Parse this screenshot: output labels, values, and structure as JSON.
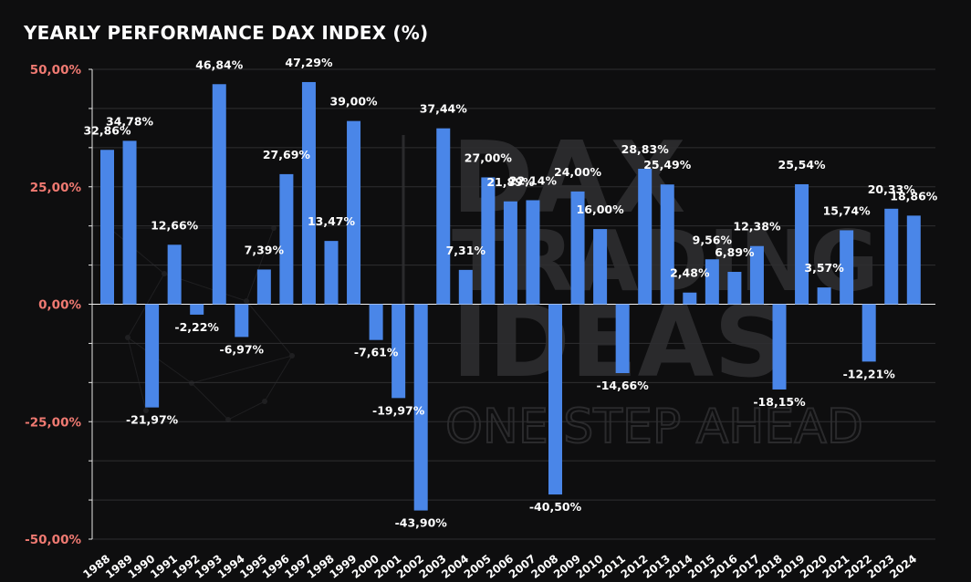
{
  "chart_data": {
    "type": "bar",
    "title": "YEARLY PERFORMANCE DAX INDEX (%)",
    "xlabel": "",
    "ylabel": "",
    "ylim": [
      -50,
      50
    ],
    "yticks": [
      50,
      25,
      0,
      -25,
      -50
    ],
    "ytick_labels": [
      "50,00%",
      "25,00%",
      "0,00%",
      "-25,00%",
      "-50,00%"
    ],
    "grid": true,
    "legend": "none",
    "categories": [
      "1988",
      "1989",
      "1990",
      "1991",
      "1992",
      "1993",
      "1994",
      "1995",
      "1996",
      "1997",
      "1998",
      "1999",
      "2000",
      "2001",
      "2002",
      "2003",
      "2004",
      "2005",
      "2006",
      "2007",
      "2008",
      "2009",
      "2010",
      "2011",
      "2012",
      "2013",
      "2014",
      "2015",
      "2016",
      "2017",
      "2018",
      "2019",
      "2020",
      "2021",
      "2022",
      "2023",
      "2024"
    ],
    "values": [
      32.86,
      34.78,
      -21.97,
      12.66,
      -2.22,
      46.84,
      -6.97,
      7.39,
      27.69,
      47.29,
      13.47,
      39.0,
      -7.61,
      -19.97,
      -43.9,
      37.44,
      7.31,
      27.0,
      21.89,
      22.14,
      -40.5,
      24.0,
      16.0,
      -14.66,
      28.83,
      25.49,
      2.48,
      9.56,
      6.89,
      12.38,
      -18.15,
      25.54,
      3.57,
      15.74,
      -12.21,
      20.33,
      18.86
    ],
    "data_labels": [
      "32,86%",
      "34,78%",
      "-21,97%",
      "12,66%",
      "-2,22%",
      "46,84%",
      "-6,97%",
      "7,39%",
      "27,69%",
      "47,29%",
      "13,47%",
      "39,00%",
      "-7,61%",
      "-19,97%",
      "-43,90%",
      "37,44%",
      "7,31%",
      "27,00%",
      "21,89%",
      "22,14%",
      "-40,50%",
      "24,00%",
      "16,00%",
      "-14,66%",
      "28,83%",
      "25,49%",
      "2,48%",
      "9,56%",
      "6,89%",
      "12,38%",
      "-18,15%",
      "25,54%",
      "3,57%",
      "15,74%",
      "-12,21%",
      "20,33%",
      "18,86%"
    ],
    "colors": {
      "background": "#0e0e0f",
      "bar": "#4a86e8",
      "ytick": "#f07a72",
      "text": "#ffffff",
      "grid": "#2e2e30",
      "watermark": "#2a2a2c"
    }
  },
  "watermark": {
    "lines": [
      "DAX",
      "TRADING",
      "IDEAS"
    ],
    "tagline": "ONE STEP AHEAD"
  }
}
